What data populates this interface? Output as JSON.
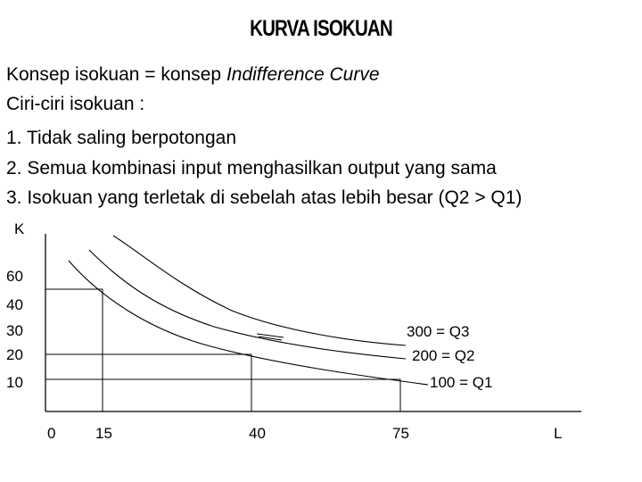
{
  "title": "KURVA ISOKUAN",
  "lines": {
    "l1_a": "Konsep isokuan = konsep ",
    "l1_b": "Indifference Curve",
    "l2": "Ciri-ciri isokuan :",
    "l3": "1. Tidak saling berpotongan",
    "l4": "2. Semua kombinasi input menghasilkan output yang sama",
    "l5": "3. Isokuan yang terletak di sebelah atas lebih besar (Q2 > Q1)"
  },
  "axes": {
    "y_label": "K",
    "x_label": "L",
    "y_ticks": [
      "60",
      "40",
      "30",
      "20",
      "10"
    ],
    "x_ticks": [
      "0",
      "15",
      "40",
      "75"
    ]
  },
  "curves": {
    "q3": "300 = Q3",
    "q2": "200 = Q2",
    "q1": "100 = Q1"
  }
}
